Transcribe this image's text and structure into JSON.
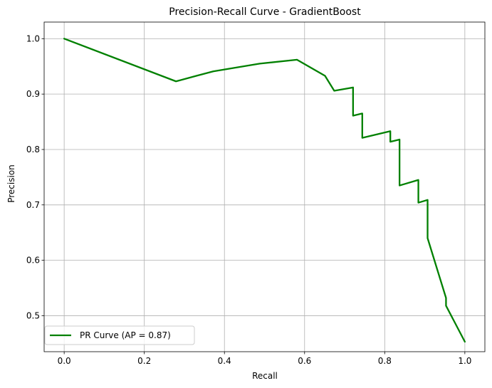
{
  "chart_data": {
    "type": "line",
    "title": "Precision-Recall Curve - GradientBoost",
    "xlabel": "Recall",
    "ylabel": "Precision",
    "xlim": [
      -0.05,
      1.05
    ],
    "ylim": [
      0.435,
      1.03
    ],
    "xticks": [
      0.0,
      0.2,
      0.4,
      0.6,
      0.8,
      1.0
    ],
    "xtick_labels": [
      "0.0",
      "0.2",
      "0.4",
      "0.6",
      "0.8",
      "1.0"
    ],
    "yticks": [
      0.5,
      0.6,
      0.7,
      0.8,
      0.9,
      1.0
    ],
    "ytick_labels": [
      "0.5",
      "0.6",
      "0.7",
      "0.8",
      "0.9",
      "1.0"
    ],
    "grid": true,
    "legend_position": "lower-left",
    "series": [
      {
        "name": "PR Curve (AP = 0.87)",
        "color": "#008000",
        "x": [
          0.0,
          0.279,
          0.33,
          0.372,
          0.488,
          0.581,
          0.651,
          0.674,
          0.721,
          0.721,
          0.744,
          0.744,
          0.814,
          0.814,
          0.837,
          0.837,
          0.884,
          0.884,
          0.907,
          0.907,
          0.953,
          0.953,
          1.0
        ],
        "y": [
          1.0,
          0.923,
          0.933,
          0.941,
          0.955,
          0.962,
          0.933,
          0.906,
          0.912,
          0.861,
          0.865,
          0.821,
          0.833,
          0.814,
          0.818,
          0.735,
          0.745,
          0.704,
          0.709,
          0.64,
          0.532,
          0.518,
          0.453
        ]
      }
    ]
  }
}
